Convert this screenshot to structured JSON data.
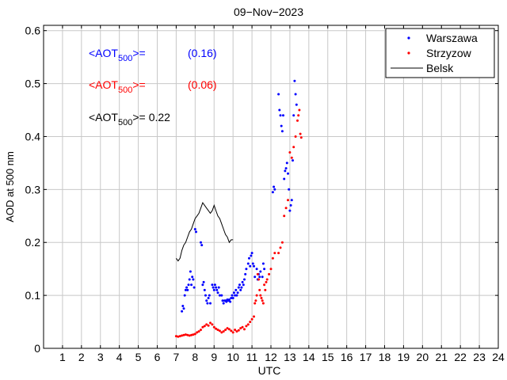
{
  "chart_data": {
    "type": "scatter",
    "title": "09−Nov−2023",
    "xlabel": "UTC",
    "ylabel": "AOD at 500 nm",
    "xlim": [
      0,
      24
    ],
    "ylim": [
      0,
      0.61
    ],
    "grid": true,
    "x_ticks": [
      1,
      2,
      3,
      4,
      5,
      6,
      7,
      8,
      9,
      10,
      11,
      12,
      13,
      14,
      15,
      16,
      17,
      18,
      19,
      20,
      21,
      22,
      23,
      24
    ],
    "y_ticks": [
      0,
      0.1,
      0.2,
      0.3,
      0.4,
      0.5,
      0.6
    ],
    "y_tick_labels": [
      "0",
      "0.1",
      "0.2",
      "0.3",
      "0.4",
      "0.5",
      "0.6"
    ],
    "legend_position": "top-right",
    "annotations": [
      {
        "prefix": "<AOT",
        "sub": "500",
        "suffix": ">=",
        "value": "(0.16)",
        "color": "#0000ff"
      },
      {
        "prefix": "<AOT",
        "sub": "500",
        "suffix": ">=",
        "value": "(0.06)",
        "color": "#ff0000"
      },
      {
        "prefix": "<AOT",
        "sub": "500",
        "suffix": ">=",
        "value": "0.22",
        "color": "#000000"
      }
    ],
    "series": [
      {
        "name": "Warszawa",
        "kind": "points",
        "color": "#0000ff",
        "x": [
          7.3,
          7.35,
          7.4,
          7.45,
          7.5,
          7.55,
          7.6,
          7.65,
          7.7,
          7.75,
          7.8,
          7.85,
          7.9,
          7.95,
          8.0,
          8.05,
          8.3,
          8.35,
          8.4,
          8.45,
          8.5,
          8.55,
          8.6,
          8.65,
          8.7,
          8.75,
          8.8,
          8.9,
          8.95,
          9.0,
          9.05,
          9.1,
          9.15,
          9.2,
          9.25,
          9.3,
          9.4,
          9.45,
          9.5,
          9.55,
          9.6,
          9.65,
          9.7,
          9.75,
          9.8,
          9.85,
          9.9,
          9.95,
          10.0,
          10.05,
          10.1,
          10.15,
          10.2,
          10.25,
          10.3,
          10.35,
          10.4,
          10.45,
          10.5,
          10.55,
          10.6,
          10.65,
          10.7,
          10.8,
          10.85,
          10.9,
          10.95,
          11.0,
          11.05,
          11.1,
          11.15,
          11.25,
          11.3,
          11.35,
          11.4,
          11.45,
          11.55,
          11.6,
          11.65,
          12.1,
          12.15,
          12.2,
          12.4,
          12.45,
          12.5,
          12.55,
          12.6,
          12.65,
          12.7,
          12.75,
          12.8,
          12.85,
          12.9,
          12.95,
          13.0,
          13.05,
          13.1,
          13.15,
          13.2,
          13.25,
          13.3,
          13.35
        ],
        "y": [
          0.07,
          0.08,
          0.075,
          0.1,
          0.11,
          0.115,
          0.11,
          0.12,
          0.13,
          0.145,
          0.12,
          0.135,
          0.13,
          0.115,
          0.225,
          0.22,
          0.2,
          0.195,
          0.12,
          0.125,
          0.11,
          0.1,
          0.09,
          0.085,
          0.095,
          0.1,
          0.085,
          0.12,
          0.115,
          0.11,
          0.12,
          0.115,
          0.11,
          0.105,
          0.115,
          0.1,
          0.1,
          0.09,
          0.085,
          0.09,
          0.09,
          0.088,
          0.092,
          0.09,
          0.092,
          0.088,
          0.095,
          0.1,
          0.095,
          0.105,
          0.1,
          0.11,
          0.1,
          0.105,
          0.115,
          0.12,
          0.11,
          0.115,
          0.125,
          0.12,
          0.13,
          0.14,
          0.15,
          0.16,
          0.17,
          0.155,
          0.175,
          0.18,
          0.16,
          0.155,
          0.135,
          0.15,
          0.13,
          0.14,
          0.135,
          0.145,
          0.135,
          0.16,
          0.15,
          0.295,
          0.305,
          0.3,
          0.48,
          0.45,
          0.44,
          0.42,
          0.41,
          0.44,
          0.32,
          0.335,
          0.34,
          0.35,
          0.33,
          0.3,
          0.26,
          0.27,
          0.28,
          0.355,
          0.44,
          0.505,
          0.48,
          0.46
        ]
      },
      {
        "name": "Strzyzow",
        "kind": "points",
        "color": "#ff0000",
        "x": [
          7.0,
          7.1,
          7.2,
          7.3,
          7.4,
          7.5,
          7.6,
          7.7,
          7.8,
          7.9,
          8.0,
          8.1,
          8.2,
          8.3,
          8.4,
          8.5,
          8.6,
          8.7,
          8.8,
          8.9,
          9.0,
          9.1,
          9.2,
          9.3,
          9.4,
          9.5,
          9.6,
          9.7,
          9.8,
          9.9,
          10.0,
          10.1,
          10.2,
          10.3,
          10.4,
          10.5,
          10.6,
          10.7,
          10.8,
          10.9,
          11.0,
          11.1,
          11.15,
          11.2,
          11.25,
          11.3,
          11.35,
          11.4,
          11.45,
          11.5,
          11.55,
          11.6,
          11.65,
          11.7,
          11.75,
          11.8,
          11.9,
          12.0,
          12.1,
          12.2,
          12.4,
          12.5,
          12.6,
          12.7,
          12.8,
          12.9,
          13.0,
          13.1,
          13.2,
          13.3,
          13.4,
          13.45,
          13.5,
          13.55,
          13.6
        ],
        "y": [
          0.023,
          0.022,
          0.023,
          0.024,
          0.025,
          0.026,
          0.025,
          0.024,
          0.025,
          0.026,
          0.027,
          0.03,
          0.032,
          0.035,
          0.04,
          0.042,
          0.045,
          0.043,
          0.048,
          0.045,
          0.04,
          0.037,
          0.035,
          0.033,
          0.03,
          0.032,
          0.035,
          0.038,
          0.036,
          0.033,
          0.03,
          0.035,
          0.032,
          0.034,
          0.038,
          0.04,
          0.036,
          0.042,
          0.045,
          0.05,
          0.055,
          0.06,
          0.085,
          0.09,
          0.1,
          0.14,
          0.13,
          0.11,
          0.1,
          0.095,
          0.09,
          0.085,
          0.12,
          0.11,
          0.125,
          0.13,
          0.14,
          0.15,
          0.17,
          0.18,
          0.18,
          0.19,
          0.2,
          0.25,
          0.265,
          0.28,
          0.37,
          0.36,
          0.38,
          0.4,
          0.43,
          0.44,
          0.45,
          0.405,
          0.398
        ]
      },
      {
        "name": "Belsk",
        "kind": "line",
        "color": "#000000",
        "x": [
          7.0,
          7.1,
          7.2,
          7.3,
          7.4,
          7.5,
          7.6,
          7.7,
          7.8,
          7.9,
          8.0,
          8.1,
          8.2,
          8.3,
          8.4,
          8.5,
          8.6,
          8.7,
          8.8,
          8.9,
          9.0,
          9.1,
          9.2,
          9.3,
          9.4,
          9.5,
          9.6,
          9.7,
          9.8,
          9.9,
          10.0
        ],
        "y": [
          0.17,
          0.165,
          0.17,
          0.185,
          0.195,
          0.2,
          0.21,
          0.22,
          0.225,
          0.235,
          0.245,
          0.25,
          0.255,
          0.265,
          0.275,
          0.27,
          0.265,
          0.26,
          0.255,
          0.26,
          0.27,
          0.26,
          0.25,
          0.245,
          0.235,
          0.225,
          0.215,
          0.21,
          0.2,
          0.205,
          0.205
        ]
      }
    ]
  }
}
